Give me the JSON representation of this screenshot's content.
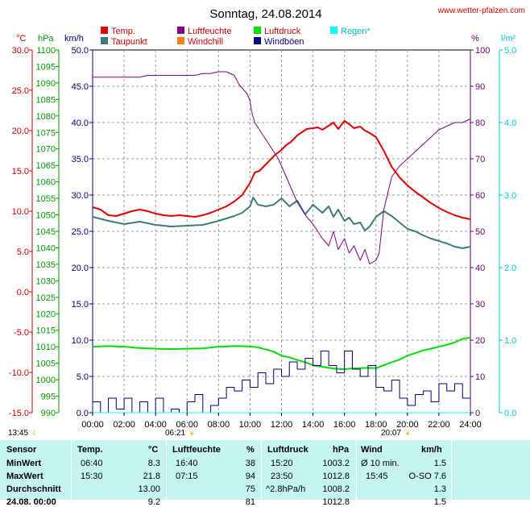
{
  "chart_data": {
    "type": "line",
    "title": "Sonntag, 24.08.2014",
    "watermark": "www.wetter-pfalzen.com",
    "axes": {
      "temp_c": {
        "unit": "°C",
        "range": [
          -15,
          30
        ],
        "ticks": [
          "30.0",
          "25.0",
          "20.0",
          "15.0",
          "10.0",
          "5.0",
          "0.0",
          "-5.0",
          "-10.0",
          "-15.0"
        ],
        "color": "#cc0000"
      },
      "pressure_hpa": {
        "unit": "hPa",
        "range": [
          990,
          1100
        ],
        "ticks": [
          "1100",
          "1095",
          "1090",
          "1085",
          "1080",
          "1075",
          "1070",
          "1065",
          "1060",
          "1055",
          "1050",
          "1045",
          "1040",
          "1035",
          "1030",
          "1025",
          "1020",
          "1015",
          "1010",
          "1005",
          "1000",
          "995",
          "990"
        ],
        "color": "#009900"
      },
      "wind_kmh": {
        "unit": "km/h",
        "range": [
          0,
          50
        ],
        "ticks": [
          "50.0",
          "45.0",
          "40.0",
          "35.0",
          "30.0",
          "25.0",
          "20.0",
          "15.0",
          "10.0",
          "5.0",
          "0.0"
        ],
        "color": "#000080"
      },
      "humidity_pct": {
        "unit": "%",
        "range": [
          0,
          100
        ],
        "ticks": [
          "100",
          "90",
          "80",
          "70",
          "60",
          "50",
          "40",
          "30",
          "20",
          "10",
          "0"
        ],
        "color": "#660066"
      },
      "rain_lm2": {
        "unit": "l/m²",
        "range": [
          0,
          5
        ],
        "ticks": [
          "5.0",
          "4.0",
          "3.0",
          "2.0",
          "1.0",
          "0.0"
        ],
        "color": "#00cccc"
      }
    },
    "x_ticks": [
      "00:00",
      "02:00",
      "04:00",
      "06:00",
      "08:00",
      "10:00",
      "12:00",
      "14:00",
      "16:00",
      "18:00",
      "20:00",
      "22:00",
      "24:00"
    ],
    "x_range": [
      0,
      24
    ],
    "grid": true,
    "legend": [
      {
        "name": "Temp.",
        "color": "#e00000"
      },
      {
        "name": "Taupunkt",
        "color": "#3f7a78"
      },
      {
        "name": "Luftfeuchte",
        "color": "#800080"
      },
      {
        "name": "Windchill",
        "color": "#ff8000"
      },
      {
        "name": "Luftdruck",
        "color": "#00dd00"
      },
      {
        "name": "Windböen",
        "color": "#000080"
      },
      {
        "name": "Regen*",
        "color": "#00ffff"
      }
    ],
    "sun": {
      "moonset": "13:45",
      "sunrise": "06:21",
      "sunset": "20:07"
    },
    "series": [
      {
        "name": "Temp.",
        "axis": "temp_c",
        "color": "#e00000",
        "x": [
          0,
          0.5,
          1,
          1.5,
          2,
          2.5,
          3,
          3.5,
          4,
          4.5,
          5,
          5.5,
          6,
          6.5,
          7,
          7.5,
          8,
          8.5,
          9,
          9.5,
          10,
          10.3,
          10.6,
          11,
          11.3,
          11.6,
          12,
          12.3,
          12.6,
          13,
          13.3,
          13.6,
          14,
          14.3,
          14.6,
          15,
          15.3,
          15.6,
          16,
          16.3,
          16.6,
          17,
          17.3,
          17.6,
          18,
          18.5,
          19,
          19.5,
          20,
          20.5,
          21,
          21.5,
          22,
          22.5,
          23,
          23.5,
          24
        ],
        "y": [
          10.5,
          10.2,
          9.5,
          9.4,
          9.7,
          10.0,
          10.2,
          10.0,
          9.7,
          9.5,
          9.4,
          9.5,
          9.4,
          9.3,
          9.5,
          9.8,
          10.2,
          10.6,
          11.2,
          12.0,
          13.5,
          14.8,
          15.0,
          15.8,
          16.4,
          17.0,
          17.6,
          18.2,
          18.6,
          19.4,
          19.8,
          20.2,
          20.3,
          20.4,
          20.1,
          20.6,
          21.0,
          20.2,
          21.2,
          20.8,
          20.3,
          20.5,
          20.0,
          19.7,
          19.2,
          17.5,
          15.5,
          14.2,
          13.2,
          12.4,
          11.7,
          11.0,
          10.4,
          9.9,
          9.5,
          9.2,
          9.0
        ]
      },
      {
        "name": "Taupunkt",
        "axis": "temp_c",
        "color": "#3f7a78",
        "x": [
          0,
          1,
          2,
          3,
          4,
          5,
          6,
          7,
          8,
          9,
          9.5,
          10,
          10.2,
          10.5,
          11,
          11.5,
          12,
          12.5,
          13,
          13.5,
          14,
          14.3,
          14.6,
          15,
          15.3,
          15.6,
          16,
          16.3,
          16.6,
          17,
          17.3,
          17.6,
          18,
          18.5,
          19,
          19.5,
          20,
          20.5,
          21,
          21.5,
          22,
          22.5,
          23,
          23.5,
          24
        ],
        "y": [
          9.3,
          8.8,
          8.4,
          8.7,
          8.3,
          8.1,
          8.2,
          8.3,
          8.8,
          9.4,
          9.8,
          10.6,
          11.7,
          10.8,
          10.6,
          10.8,
          11.6,
          10.6,
          11.3,
          9.6,
          10.8,
          10.3,
          9.8,
          10.6,
          9.3,
          10.2,
          8.8,
          9.2,
          8.4,
          8.6,
          7.6,
          8.1,
          9.3,
          10.0,
          9.4,
          8.6,
          7.8,
          7.5,
          7.0,
          6.6,
          6.3,
          6.0,
          5.6,
          5.4,
          5.6
        ]
      },
      {
        "name": "Luftfeuchte",
        "axis": "humidity_pct",
        "color": "#800080",
        "x": [
          0,
          1,
          2,
          3,
          3.5,
          4,
          4.5,
          5,
          5.5,
          6,
          6.5,
          7,
          7.5,
          8,
          8.5,
          9,
          9.3,
          9.6,
          9.8,
          10,
          10.1,
          10.3,
          10.6,
          10.9,
          11.2,
          11.5,
          11.8,
          12.1,
          12.4,
          12.7,
          13,
          13.3,
          13.6,
          14,
          14.3,
          14.6,
          15,
          15.3,
          15.6,
          16,
          16.3,
          16.6,
          17,
          17.3,
          17.6,
          18,
          18.2,
          18.5,
          19,
          19.5,
          20,
          20.5,
          21,
          21.5,
          22,
          22.5,
          23,
          23.5,
          24
        ],
        "y": [
          92.5,
          92.5,
          92.5,
          92.5,
          93,
          93,
          93,
          93,
          93,
          93,
          93,
          93.5,
          93.5,
          94,
          94,
          93,
          90.5,
          89,
          88,
          86,
          83,
          80,
          78,
          76,
          74,
          72,
          70,
          67,
          64,
          61,
          58,
          56,
          54,
          52,
          50,
          48,
          46,
          50,
          45,
          48,
          44,
          46,
          42,
          45,
          41,
          42,
          44,
          56,
          65,
          68,
          70,
          72,
          74,
          76,
          78,
          79,
          80,
          80,
          81
        ]
      },
      {
        "name": "Luftdruck",
        "axis": "pressure_hpa",
        "color": "#00dd00",
        "x": [
          0,
          1,
          2,
          3,
          4,
          5,
          6,
          7,
          8,
          9,
          10,
          10.5,
          11,
          11.5,
          12,
          12.5,
          13,
          13.5,
          14,
          14.5,
          15,
          15.5,
          16,
          16.5,
          17,
          17.5,
          18,
          18.5,
          19,
          19.5,
          20,
          20.5,
          21,
          21.5,
          22,
          22.5,
          23,
          23.5,
          24
        ],
        "y": [
          1010.0,
          1010.2,
          1010.0,
          1009.6,
          1009.4,
          1009.3,
          1009.4,
          1009.5,
          1010.0,
          1010.2,
          1010.1,
          1009.8,
          1009.2,
          1008.5,
          1007.3,
          1006.8,
          1006.0,
          1005.3,
          1004.4,
          1004.0,
          1003.6,
          1003.3,
          1003.2,
          1003.4,
          1003.5,
          1003.6,
          1003.5,
          1004.4,
          1005.3,
          1006.1,
          1007.3,
          1008.1,
          1008.9,
          1009.4,
          1010.0,
          1010.6,
          1011.3,
          1012.4,
          1012.8
        ]
      },
      {
        "name": "Windböen",
        "axis": "wind_kmh",
        "color": "#000080",
        "x": [
          0,
          0.5,
          1,
          1.5,
          2,
          2.5,
          3,
          3.5,
          4,
          4.5,
          5,
          5.5,
          6,
          6.5,
          7,
          7.5,
          8,
          8.5,
          9,
          9.5,
          10,
          10.5,
          11,
          11.5,
          12,
          12.5,
          13,
          13.5,
          14,
          14.5,
          15,
          15.5,
          16,
          16.5,
          17,
          17.5,
          18,
          18.5,
          19,
          19.5,
          20,
          20.5,
          21,
          21.5,
          22,
          22.5,
          23,
          23.5,
          24
        ],
        "y": [
          1.5,
          0,
          2.0,
          0.5,
          2.0,
          0,
          1.5,
          0,
          2.0,
          0,
          0.5,
          0,
          1.5,
          2.5,
          0,
          1.0,
          2.0,
          3.5,
          3.0,
          4.5,
          3.5,
          5.5,
          4.0,
          6.0,
          5.0,
          7.0,
          6.0,
          7.5,
          6.5,
          8.5,
          6.5,
          5.5,
          8.5,
          6.0,
          5.0,
          6.5,
          3.5,
          3.0,
          4.5,
          2.0,
          1.0,
          2.5,
          3.0,
          1.5,
          4.0,
          3.0,
          4.0,
          2.0,
          2.0
        ]
      },
      {
        "name": "Regen*",
        "axis": "rain_lm2",
        "color": "#00ffff",
        "x": [
          0,
          24
        ],
        "y": [
          0,
          0
        ]
      }
    ]
  },
  "table": {
    "headers": [
      "Sensor",
      "Temp.",
      "°C",
      "Luftfeuchte",
      "%",
      "Luftdruck",
      "hPa",
      "Wind",
      "km/h"
    ],
    "rows": [
      [
        "MinWert",
        "06:40",
        "8.3",
        "16:40",
        "38",
        "15:20",
        "1003.2",
        "Ø 10 min.",
        "1.5"
      ],
      [
        "MaxWert",
        "15:30",
        "21.8",
        "07:15",
        "94",
        "23:50",
        "1012.8",
        "15:45",
        "O-SO 7.6"
      ],
      [
        "Durchschnitt",
        "",
        "13.00",
        "",
        "75",
        "^2.8hPa/h",
        "1008.2",
        "",
        "1.3"
      ],
      [
        "24.08. 00:00",
        "",
        "9.2",
        "",
        "81",
        "",
        "1012.8",
        "",
        "1.5"
      ]
    ]
  }
}
